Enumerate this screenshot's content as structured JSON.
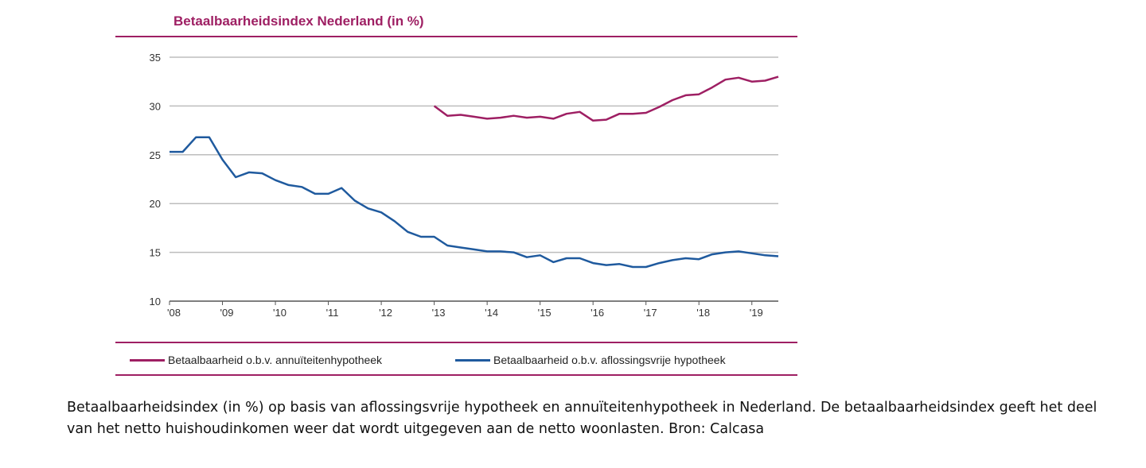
{
  "chart_data": {
    "type": "line",
    "title": "Betaalbaarheidsindex Nederland (in %)",
    "xlabel": "",
    "ylabel": "",
    "xlim": [
      2008,
      2019.5
    ],
    "ylim": [
      10,
      35
    ],
    "y_ticks": [
      10,
      15,
      20,
      25,
      30,
      35
    ],
    "x_ticks": [
      {
        "value": 2008,
        "label": "'08"
      },
      {
        "value": 2009,
        "label": "'09"
      },
      {
        "value": 2010,
        "label": "'10"
      },
      {
        "value": 2011,
        "label": "'11"
      },
      {
        "value": 2012,
        "label": "'12"
      },
      {
        "value": 2013,
        "label": "'13"
      },
      {
        "value": 2014,
        "label": "'14"
      },
      {
        "value": 2015,
        "label": "'15"
      },
      {
        "value": 2016,
        "label": "'16"
      },
      {
        "value": 2017,
        "label": "'17"
      },
      {
        "value": 2018,
        "label": "'18"
      },
      {
        "value": 2019,
        "label": "'19"
      }
    ],
    "grid": "horizontal",
    "legend": "bottom",
    "series": [
      {
        "name": "Betaalbaarheid o.b.v. annuïteitenhypotheek",
        "color": "#9e1f63",
        "x": [
          2013,
          2013.25,
          2013.5,
          2013.75,
          2014,
          2014.25,
          2014.5,
          2014.75,
          2015,
          2015.25,
          2015.5,
          2015.75,
          2016,
          2016.25,
          2016.5,
          2016.75,
          2017,
          2017.25,
          2017.5,
          2017.75,
          2018,
          2018.25,
          2018.5,
          2018.75,
          2019,
          2019.25,
          2019.5
        ],
        "values": [
          30.0,
          29.0,
          29.1,
          28.9,
          28.7,
          28.8,
          29.0,
          28.8,
          28.9,
          28.7,
          29.2,
          29.4,
          28.5,
          28.6,
          29.2,
          29.2,
          29.3,
          29.9,
          30.6,
          31.1,
          31.2,
          31.9,
          32.7,
          32.9,
          32.5,
          32.6,
          33.0
        ]
      },
      {
        "name": "Betaalbaarheid o.b.v. aflossingsvrije hypotheek",
        "color": "#1f5a9e",
        "x": [
          2008,
          2008.25,
          2008.5,
          2008.75,
          2009,
          2009.25,
          2009.5,
          2009.75,
          2010,
          2010.25,
          2010.5,
          2010.75,
          2011,
          2011.25,
          2011.5,
          2011.75,
          2012,
          2012.25,
          2012.5,
          2012.75,
          2013,
          2013.25,
          2013.5,
          2013.75,
          2014,
          2014.25,
          2014.5,
          2014.75,
          2015,
          2015.25,
          2015.5,
          2015.75,
          2016,
          2016.25,
          2016.5,
          2016.75,
          2017,
          2017.25,
          2017.5,
          2017.75,
          2018,
          2018.25,
          2018.5,
          2018.75,
          2019,
          2019.25,
          2019.5
        ],
        "values": [
          25.3,
          25.3,
          26.8,
          26.8,
          24.5,
          22.7,
          23.2,
          23.1,
          22.4,
          21.9,
          21.7,
          21.0,
          21.0,
          21.6,
          20.3,
          19.5,
          19.1,
          18.2,
          17.1,
          16.6,
          16.6,
          15.7,
          15.5,
          15.3,
          15.1,
          15.1,
          15.0,
          14.5,
          14.7,
          14.0,
          14.4,
          14.4,
          13.9,
          13.7,
          13.8,
          13.5,
          13.5,
          13.9,
          14.2,
          14.4,
          14.3,
          14.8,
          15.0,
          15.1,
          14.9,
          14.7,
          14.6
        ]
      }
    ]
  },
  "caption": "Betaalbaarheidsindex (in %) op basis van aflossingsvrije hypotheek en annuïteitenhypotheek in Nederland. De betaalbaarheidsindex geeft het deel van het netto huishoudinkomen weer dat wordt uitgegeven aan de netto woonlasten. Bron: Calcasa"
}
